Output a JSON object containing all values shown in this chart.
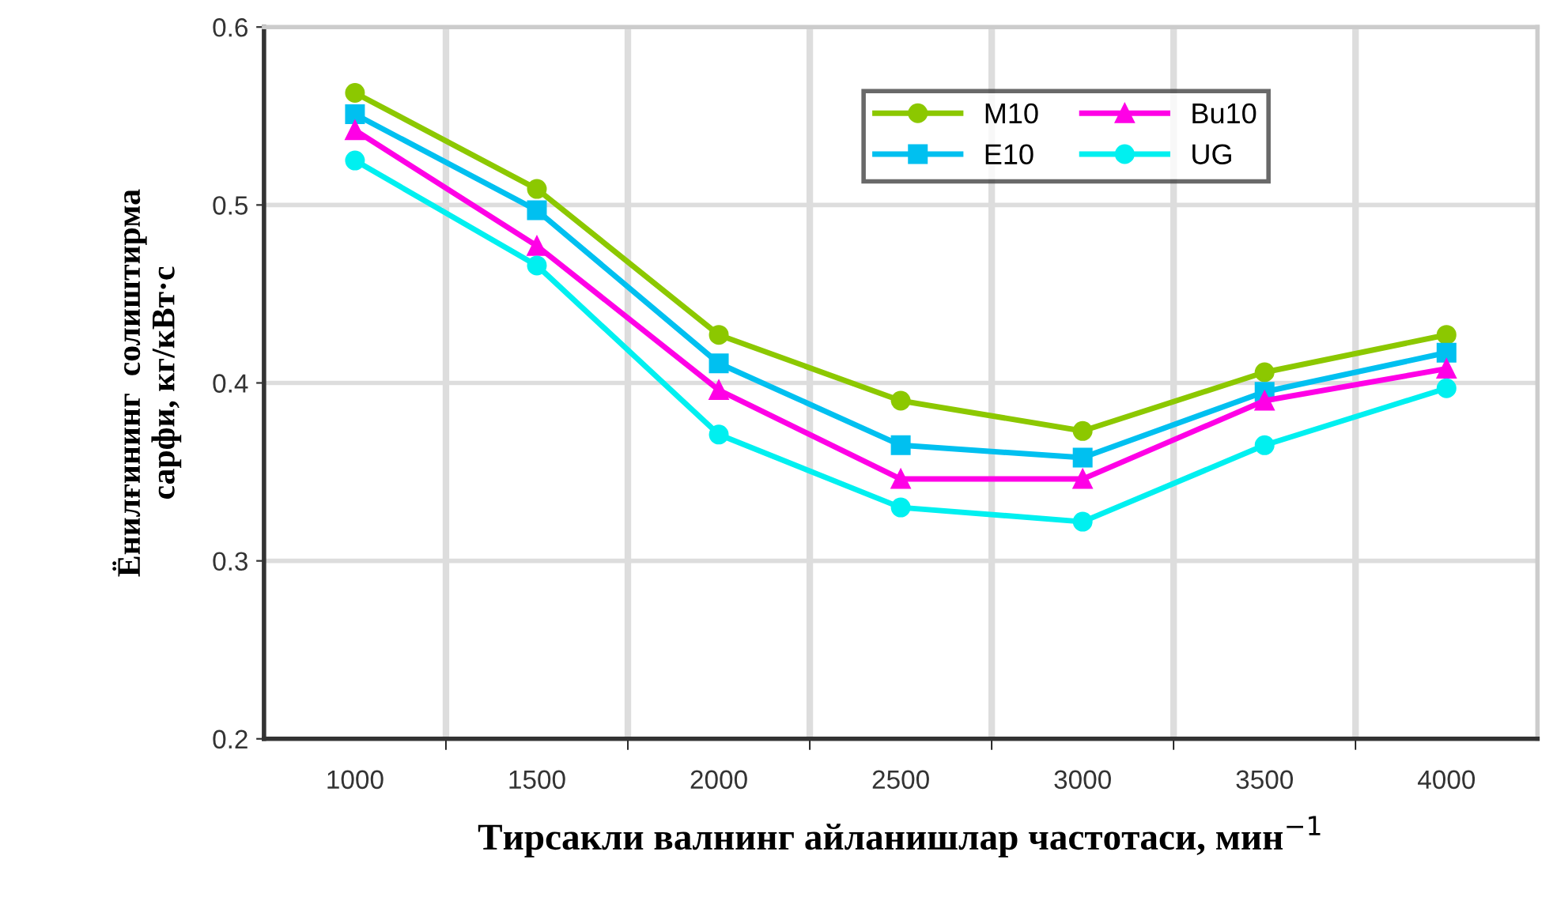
{
  "chart_data": {
    "type": "line",
    "categories": [
      "1000",
      "1500",
      "2000",
      "2500",
      "3000",
      "3500",
      "4000"
    ],
    "xlabel": "Тирсакли валнинг айланишлар частотаси, мин$^{−1}$",
    "ylabel": "Ёнилғининг  солиштирма\nсарфи, кг/кВт·с",
    "ylim": [
      0.2,
      0.6
    ],
    "yticks": [
      0.2,
      0.3,
      0.4,
      0.5,
      0.6
    ],
    "grid": true,
    "legend": "top right",
    "line_style": "solid",
    "series": [
      {
        "name": "M10",
        "color": "#8cc800",
        "marker": "circle",
        "values": [
          0.563,
          0.509,
          0.427,
          0.39,
          0.373,
          0.406,
          0.427
        ]
      },
      {
        "name": "E10",
        "color": "#00c0f0",
        "marker": "square",
        "values": [
          0.551,
          0.497,
          0.411,
          0.365,
          0.358,
          0.395,
          0.417
        ]
      },
      {
        "name": "Bu10",
        "color": "#ff00e6",
        "marker": "triangle",
        "values": [
          0.542,
          0.477,
          0.396,
          0.346,
          0.346,
          0.39,
          0.408
        ]
      },
      {
        "name": "UG",
        "color": "#00f0f0",
        "marker": "circle",
        "values": [
          0.525,
          0.466,
          0.371,
          0.33,
          0.322,
          0.365,
          0.397
        ]
      }
    ]
  }
}
